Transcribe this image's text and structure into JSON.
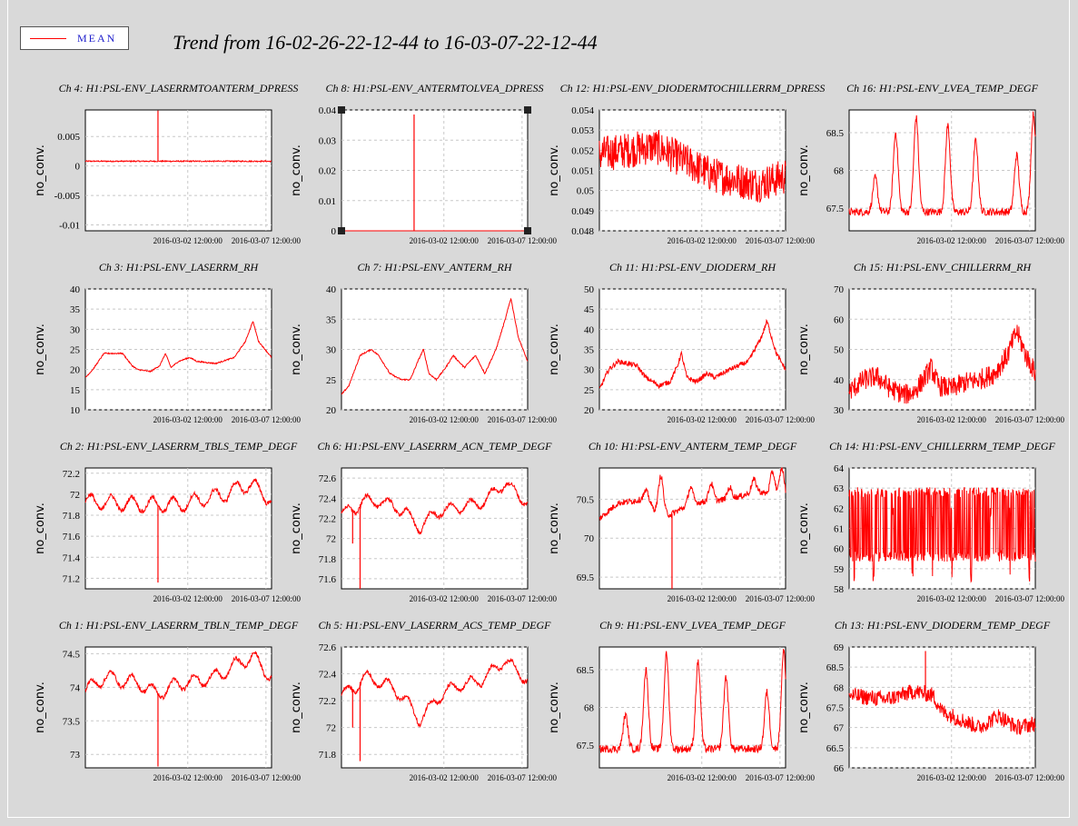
{
  "header": {
    "title": "Trend from 16-02-26-22-12-44 to 16-03-07-22-12-44",
    "legend_label": "MEAN",
    "legend_color": "#ff0000"
  },
  "chart_data": [
    {
      "type": "line",
      "title": "Ch 4: H1:PSL-ENV_LASERRMTOANTERM_DPRESS",
      "ylabel": "no_conv.",
      "ylim": [
        -0.011,
        0.0095
      ],
      "y_ticks": [
        "0.005",
        "0",
        "-0.005",
        "-0.01"
      ],
      "y_tick_values": [
        0.005,
        0,
        -0.005,
        -0.01
      ],
      "x_ticks": [
        "2016-03-02 12:00:00",
        "2016-03-07 12:00:00"
      ],
      "x_tick_values": [
        0.55,
        0.97
      ],
      "color": "#ff0000",
      "shape": "flat",
      "base": 0.0008,
      "noise": 0.0002,
      "spikes": [
        [
          0.39,
          0.0094
        ]
      ]
    },
    {
      "type": "line",
      "title": "Ch 8: H1:PSL-ENV_ANTERMTOLVEA_DPRESS",
      "ylabel": "no_conv.",
      "ylim": [
        0,
        0.04
      ],
      "y_ticks": [
        "0.04",
        "0.03",
        "0.02",
        "0.01",
        "0"
      ],
      "y_tick_values": [
        0.04,
        0.03,
        0.02,
        0.01,
        0
      ],
      "x_ticks": [
        "2016-03-02 12:00:00",
        "2016-03-07 12:00:00"
      ],
      "x_tick_values": [
        0.55,
        0.97
      ],
      "color": "#ff0000",
      "shape": "spike_only",
      "base": 0,
      "noise": 0,
      "spikes": [
        [
          0.39,
          0.0385
        ]
      ]
    },
    {
      "type": "line",
      "title": "Ch 12: H1:PSL-ENV_DIODERMTOCHILLERRM_DPRESS",
      "ylabel": "no_conv.",
      "ylim": [
        0.048,
        0.054
      ],
      "y_ticks": [
        "0.054",
        "0.053",
        "0.052",
        "0.051",
        "0.05",
        "0.049",
        "0.048"
      ],
      "y_tick_values": [
        0.054,
        0.053,
        0.052,
        0.051,
        0.05,
        0.049,
        0.048
      ],
      "x_ticks": [
        "2016-03-02 12:00:00",
        "2016-03-07 12:00:00"
      ],
      "x_tick_values": [
        0.55,
        0.97
      ],
      "color": "#ff0000",
      "shape": "noisy_band",
      "base": 0.0515,
      "noise": 0.0009,
      "trend": [
        [
          0,
          0.0518
        ],
        [
          0.3,
          0.0522
        ],
        [
          0.6,
          0.0508
        ],
        [
          0.85,
          0.0503
        ],
        [
          1,
          0.0507
        ]
      ]
    },
    {
      "type": "line",
      "title": "Ch 16: H1:PSL-ENV_LVEA_TEMP_DEGF",
      "ylabel": "no_conv.",
      "ylim": [
        67.2,
        68.8
      ],
      "y_ticks": [
        "68.5",
        "68",
        "67.5"
      ],
      "y_tick_values": [
        68.5,
        68,
        67.5
      ],
      "x_ticks": [
        "2016-03-02 12:00:00",
        "2016-03-07 12:00:00"
      ],
      "x_tick_values": [
        0.55,
        0.97
      ],
      "color": "#ff0000",
      "shape": "daily_peaks",
      "base": 67.45,
      "noise": 0.05,
      "peaks": [
        [
          0.14,
          67.9
        ],
        [
          0.25,
          68.5
        ],
        [
          0.36,
          68.7
        ],
        [
          0.53,
          68.6
        ],
        [
          0.68,
          68.4
        ],
        [
          0.9,
          68.2
        ],
        [
          0.99,
          68.75
        ]
      ]
    },
    {
      "type": "line",
      "title": "Ch 3: H1:PSL-ENV_LASERRM_RH",
      "ylabel": "no_conv.",
      "ylim": [
        10,
        40
      ],
      "y_ticks": [
        "40",
        "35",
        "30",
        "25",
        "20",
        "15",
        "10"
      ],
      "y_tick_values": [
        40,
        35,
        30,
        25,
        20,
        15,
        10
      ],
      "x_ticks": [
        "2016-03-02 12:00:00",
        "2016-03-07 12:00:00"
      ],
      "x_tick_values": [
        0.55,
        0.97
      ],
      "color": "#ff0000",
      "shape": "smooth",
      "noise": 0.15,
      "trend": [
        [
          0,
          18
        ],
        [
          0.04,
          20
        ],
        [
          0.1,
          24
        ],
        [
          0.2,
          24
        ],
        [
          0.25,
          21
        ],
        [
          0.28,
          20
        ],
        [
          0.35,
          19.5
        ],
        [
          0.4,
          21
        ],
        [
          0.43,
          24
        ],
        [
          0.46,
          20.5
        ],
        [
          0.5,
          22
        ],
        [
          0.56,
          23
        ],
        [
          0.6,
          22
        ],
        [
          0.7,
          21.5
        ],
        [
          0.8,
          23
        ],
        [
          0.86,
          27
        ],
        [
          0.9,
          32
        ],
        [
          0.93,
          27
        ],
        [
          1,
          23
        ]
      ]
    },
    {
      "type": "line",
      "title": "Ch 7: H1:PSL-ENV_ANTERM_RH",
      "ylabel": "no_conv.",
      "ylim": [
        20,
        40
      ],
      "y_ticks": [
        "40",
        "35",
        "30",
        "25",
        "20"
      ],
      "y_tick_values": [
        40,
        35,
        30,
        25,
        20
      ],
      "x_ticks": [
        "2016-03-02 12:00:00",
        "2016-03-07 12:00:00"
      ],
      "x_tick_values": [
        0.55,
        0.97
      ],
      "color": "#ff0000",
      "shape": "smooth",
      "noise": 0.12,
      "trend": [
        [
          0,
          22.5
        ],
        [
          0.04,
          24
        ],
        [
          0.1,
          29
        ],
        [
          0.16,
          30
        ],
        [
          0.2,
          29
        ],
        [
          0.26,
          26
        ],
        [
          0.32,
          25
        ],
        [
          0.37,
          25
        ],
        [
          0.41,
          28
        ],
        [
          0.44,
          30
        ],
        [
          0.47,
          26
        ],
        [
          0.51,
          25
        ],
        [
          0.56,
          27
        ],
        [
          0.6,
          29
        ],
        [
          0.66,
          27
        ],
        [
          0.72,
          29
        ],
        [
          0.77,
          26
        ],
        [
          0.83,
          30
        ],
        [
          0.88,
          35
        ],
        [
          0.91,
          38.5
        ],
        [
          0.95,
          32
        ],
        [
          1,
          28
        ]
      ]
    },
    {
      "type": "line",
      "title": "Ch 11: H1:PSL-ENV_DIODERM_RH",
      "ylabel": "no_conv.",
      "ylim": [
        20,
        50
      ],
      "y_ticks": [
        "50",
        "45",
        "40",
        "35",
        "30",
        "25",
        "20"
      ],
      "y_tick_values": [
        50,
        45,
        40,
        35,
        30,
        25,
        20
      ],
      "x_ticks": [
        "2016-03-02 12:00:00",
        "2016-03-07 12:00:00"
      ],
      "x_tick_values": [
        0.55,
        0.97
      ],
      "color": "#ff0000",
      "shape": "smooth",
      "noise": 0.6,
      "trend": [
        [
          0,
          25
        ],
        [
          0.05,
          30
        ],
        [
          0.1,
          32
        ],
        [
          0.2,
          31
        ],
        [
          0.25,
          28
        ],
        [
          0.32,
          26
        ],
        [
          0.38,
          27
        ],
        [
          0.42,
          31
        ],
        [
          0.44,
          34
        ],
        [
          0.47,
          28
        ],
        [
          0.52,
          27
        ],
        [
          0.58,
          29
        ],
        [
          0.62,
          28
        ],
        [
          0.7,
          30
        ],
        [
          0.8,
          32
        ],
        [
          0.87,
          38
        ],
        [
          0.9,
          42
        ],
        [
          0.95,
          34
        ],
        [
          1,
          30
        ]
      ]
    },
    {
      "type": "line",
      "title": "Ch 15: H1:PSL-ENV_CHILLERRM_RH",
      "ylabel": "no_conv.",
      "ylim": [
        30,
        70
      ],
      "y_ticks": [
        "70",
        "60",
        "50",
        "40",
        "30"
      ],
      "y_tick_values": [
        70,
        60,
        50,
        40,
        30
      ],
      "x_ticks": [
        "2016-03-02 12:00:00",
        "2016-03-07 12:00:00"
      ],
      "x_tick_values": [
        0.55,
        0.97
      ],
      "color": "#ff0000",
      "shape": "noisy_band",
      "noise": 3.5,
      "trend": [
        [
          0,
          36
        ],
        [
          0.08,
          40
        ],
        [
          0.15,
          41
        ],
        [
          0.22,
          37
        ],
        [
          0.3,
          35
        ],
        [
          0.35,
          36
        ],
        [
          0.4,
          40
        ],
        [
          0.44,
          44
        ],
        [
          0.48,
          38
        ],
        [
          0.55,
          37
        ],
        [
          0.62,
          39
        ],
        [
          0.7,
          40
        ],
        [
          0.78,
          42
        ],
        [
          0.85,
          48
        ],
        [
          0.9,
          56
        ],
        [
          0.95,
          48
        ],
        [
          1,
          42
        ]
      ]
    },
    {
      "type": "line",
      "title": "Ch 2: H1:PSL-ENV_LASERRM_TBLS_TEMP_DEGF",
      "ylabel": "no_conv.",
      "ylim": [
        71.1,
        72.25
      ],
      "y_ticks": [
        "72.2",
        "72",
        "71.8",
        "71.6",
        "71.4",
        "71.2"
      ],
      "y_tick_values": [
        72.2,
        72,
        71.8,
        71.6,
        71.4,
        71.2
      ],
      "x_ticks": [
        "2016-03-02 12:00:00",
        "2016-03-07 12:00:00"
      ],
      "x_tick_values": [
        0.55,
        0.97
      ],
      "color": "#ff0000",
      "shape": "wavy",
      "base": 71.95,
      "amp": 0.07,
      "noise": 0.02,
      "trend": [
        [
          0,
          71.93
        ],
        [
          0.35,
          71.9
        ],
        [
          0.5,
          71.9
        ],
        [
          0.75,
          72.0
        ],
        [
          0.88,
          72.1
        ],
        [
          1,
          71.95
        ]
      ],
      "spikes": [
        [
          0.39,
          71.16
        ]
      ]
    },
    {
      "type": "line",
      "title": "Ch 6: H1:PSL-ENV_LASERRM_ACN_TEMP_DEGF",
      "ylabel": "no_conv.",
      "ylim": [
        71.5,
        72.7
      ],
      "y_ticks": [
        "72.6",
        "72.4",
        "72.2",
        "72",
        "71.8",
        "71.6"
      ],
      "y_tick_values": [
        72.6,
        72.4,
        72.2,
        72,
        71.8,
        71.6
      ],
      "x_ticks": [
        "2016-03-02 12:00:00",
        "2016-03-07 12:00:00"
      ],
      "x_tick_values": [
        0.55,
        0.97
      ],
      "color": "#ff0000",
      "shape": "wavy",
      "base": 72.3,
      "amp": 0.05,
      "noise": 0.02,
      "trend": [
        [
          0,
          72.25
        ],
        [
          0.08,
          72.3
        ],
        [
          0.12,
          72.38
        ],
        [
          0.25,
          72.35
        ],
        [
          0.35,
          72.25
        ],
        [
          0.42,
          72.1
        ],
        [
          0.5,
          72.25
        ],
        [
          0.6,
          72.3
        ],
        [
          0.75,
          72.35
        ],
        [
          0.88,
          72.55
        ],
        [
          1,
          72.35
        ]
      ],
      "spikes": [
        [
          0.1,
          71.5
        ],
        [
          0.06,
          71.95
        ]
      ]
    },
    {
      "type": "line",
      "title": "Ch 10: H1:PSL-ENV_ANTERM_TEMP_DEGF",
      "ylabel": "no_conv.",
      "ylim": [
        69.35,
        70.9
      ],
      "y_ticks": [
        "70.5",
        "70",
        "69.5"
      ],
      "y_tick_values": [
        70.5,
        70,
        69.5
      ],
      "x_ticks": [
        "2016-03-02 12:00:00",
        "2016-03-07 12:00:00"
      ],
      "x_tick_values": [
        0.55,
        0.97
      ],
      "color": "#ff0000",
      "shape": "daily_peaks",
      "base": 70.38,
      "noise": 0.04,
      "trend": [
        [
          0,
          70.25
        ],
        [
          0.1,
          70.45
        ],
        [
          0.25,
          70.5
        ],
        [
          0.3,
          70.35
        ],
        [
          0.38,
          70.3
        ],
        [
          0.5,
          70.45
        ],
        [
          0.7,
          70.5
        ],
        [
          0.85,
          70.6
        ],
        [
          1,
          70.5
        ]
      ],
      "peaks": [
        [
          0.25,
          70.6
        ],
        [
          0.33,
          70.8
        ],
        [
          0.49,
          70.65
        ],
        [
          0.6,
          70.7
        ],
        [
          0.7,
          70.65
        ],
        [
          0.83,
          70.75
        ],
        [
          0.93,
          70.85
        ],
        [
          0.98,
          70.9
        ]
      ],
      "spikes": [
        [
          0.39,
          69.35
        ]
      ]
    },
    {
      "type": "line",
      "title": "Ch 14: H1:PSL-ENV_CHILLERRM_TEMP_DEGF",
      "ylabel": "no_conv.",
      "ylim": [
        58,
        64
      ],
      "y_ticks": [
        "64",
        "63",
        "62",
        "61",
        "60",
        "59",
        "58"
      ],
      "y_tick_values": [
        64,
        63,
        62,
        61,
        60,
        59,
        58
      ],
      "x_ticks": [
        "2016-03-02 12:00:00",
        "2016-03-07 12:00:00"
      ],
      "x_tick_values": [
        0.55,
        0.97
      ],
      "color": "#ff0000",
      "shape": "square_noise",
      "low": 59.6,
      "high": 62.8,
      "noise": 0.25
    },
    {
      "type": "line",
      "title": "Ch 1: H1:PSL-ENV_LASERRM_TBLN_TEMP_DEGF",
      "ylabel": "no_conv.",
      "ylim": [
        72.8,
        74.6
      ],
      "y_ticks": [
        "74.5",
        "74",
        "73.5",
        "73"
      ],
      "y_tick_values": [
        74.5,
        74,
        73.5,
        73
      ],
      "x_ticks": [
        "2016-03-02 12:00:00",
        "2016-03-07 12:00:00"
      ],
      "x_tick_values": [
        0.55,
        0.97
      ],
      "color": "#ff0000",
      "shape": "wavy",
      "base": 74.05,
      "amp": 0.1,
      "noise": 0.03,
      "trend": [
        [
          0,
          73.95
        ],
        [
          0.1,
          74.15
        ],
        [
          0.3,
          74.05
        ],
        [
          0.38,
          73.9
        ],
        [
          0.5,
          74.05
        ],
        [
          0.7,
          74.15
        ],
        [
          0.85,
          74.4
        ],
        [
          0.9,
          74.45
        ],
        [
          1,
          74.15
        ]
      ],
      "spikes": [
        [
          0.39,
          72.82
        ]
      ]
    },
    {
      "type": "line",
      "title": "Ch 5: H1:PSL-ENV_LASERRM_ACS_TEMP_DEGF",
      "ylabel": "no_conv.",
      "ylim": [
        71.7,
        72.6
      ],
      "y_ticks": [
        "72.6",
        "72.4",
        "72.2",
        "72",
        "71.8"
      ],
      "y_tick_values": [
        72.6,
        72.4,
        72.2,
        72,
        71.8
      ],
      "x_ticks": [
        "2016-03-02 12:00:00",
        "2016-03-07 12:00:00"
      ],
      "x_tick_values": [
        0.55,
        0.97
      ],
      "color": "#ff0000",
      "shape": "wavy",
      "base": 72.3,
      "amp": 0.04,
      "noise": 0.015,
      "trend": [
        [
          0,
          72.25
        ],
        [
          0.08,
          72.3
        ],
        [
          0.12,
          72.38
        ],
        [
          0.25,
          72.32
        ],
        [
          0.35,
          72.2
        ],
        [
          0.42,
          72.05
        ],
        [
          0.5,
          72.2
        ],
        [
          0.6,
          72.3
        ],
        [
          0.75,
          72.35
        ],
        [
          0.88,
          72.5
        ],
        [
          1,
          72.35
        ]
      ],
      "spikes": [
        [
          0.1,
          71.75
        ],
        [
          0.06,
          72.0
        ]
      ]
    },
    {
      "type": "line",
      "title": "Ch 9: H1:PSL-ENV_LVEA_TEMP_DEGF",
      "ylabel": "no_conv.",
      "ylim": [
        67.2,
        68.8
      ],
      "y_ticks": [
        "68.5",
        "68",
        "67.5"
      ],
      "y_tick_values": [
        68.5,
        68,
        67.5
      ],
      "x_ticks": [
        "2016-03-02 12:00:00",
        "2016-03-07 12:00:00"
      ],
      "x_tick_values": [
        0.55,
        0.97
      ],
      "color": "#ff0000",
      "shape": "daily_peaks",
      "base": 67.45,
      "noise": 0.05,
      "peaks": [
        [
          0.14,
          67.9
        ],
        [
          0.25,
          68.5
        ],
        [
          0.36,
          68.7
        ],
        [
          0.53,
          68.6
        ],
        [
          0.68,
          68.4
        ],
        [
          0.9,
          68.2
        ],
        [
          0.99,
          68.75
        ]
      ]
    },
    {
      "type": "line",
      "title": "Ch 13: H1:PSL-ENV_DIODERM_TEMP_DEGF",
      "ylabel": "no_conv.",
      "ylim": [
        66,
        69
      ],
      "y_ticks": [
        "69",
        "68.5",
        "68",
        "67.5",
        "67",
        "66.5",
        "66"
      ],
      "y_tick_values": [
        69,
        68.5,
        68,
        67.5,
        67,
        66.5,
        66
      ],
      "x_ticks": [
        "2016-03-02 12:00:00",
        "2016-03-07 12:00:00"
      ],
      "x_tick_values": [
        0.55,
        0.97
      ],
      "color": "#ff0000",
      "shape": "noisy_band",
      "noise": 0.2,
      "trend": [
        [
          0,
          67.8
        ],
        [
          0.2,
          67.7
        ],
        [
          0.35,
          67.9
        ],
        [
          0.45,
          67.8
        ],
        [
          0.5,
          67.4
        ],
        [
          0.6,
          67.2
        ],
        [
          0.7,
          67.0
        ],
        [
          0.8,
          67.3
        ],
        [
          0.9,
          67.0
        ],
        [
          1,
          67.1
        ]
      ],
      "spikes": [
        [
          0.41,
          68.9
        ]
      ]
    }
  ]
}
